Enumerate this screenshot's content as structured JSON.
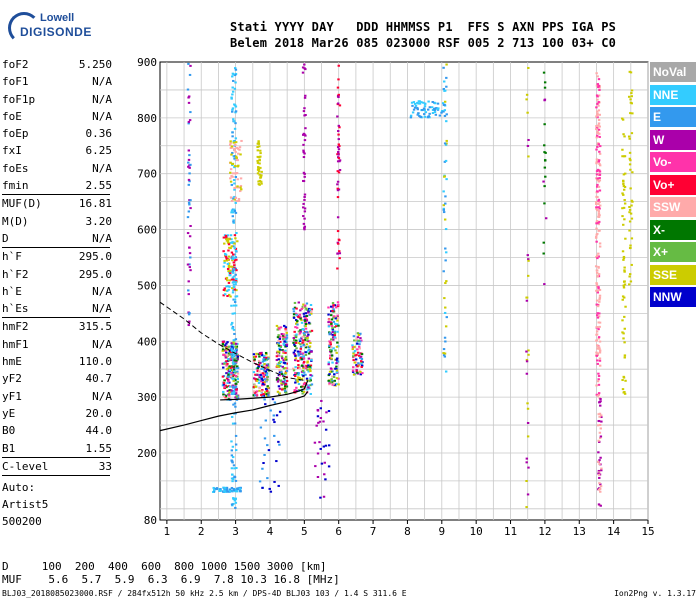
{
  "logo": {
    "line1": "Lowell",
    "line2": "DIGISONDE"
  },
  "header": {
    "line1": "Stati YYYY DAY   DDD HHMMSS P1  FFS S AXN PPS IGA PS",
    "line2": "Belem 2018 Mar26 085 023000 RSF 005 2 713 100 03+ C0"
  },
  "params_group1": [
    {
      "name": "foF2",
      "value": "5.250"
    },
    {
      "name": "foF1",
      "value": "N/A"
    },
    {
      "name": "foF1p",
      "value": "N/A"
    },
    {
      "name": "foE",
      "value": "N/A"
    },
    {
      "name": "foEp",
      "value": "0.36"
    },
    {
      "name": "fxI",
      "value": "6.25"
    },
    {
      "name": "foEs",
      "value": "N/A"
    },
    {
      "name": "fmin",
      "value": "2.55"
    }
  ],
  "params_group2": [
    {
      "name": "MUF(D)",
      "value": "16.81"
    },
    {
      "name": "M(D)",
      "value": "3.20"
    },
    {
      "name": "D",
      "value": "N/A"
    }
  ],
  "params_group3": [
    {
      "name": "h`F",
      "value": "295.0"
    },
    {
      "name": "h`F2",
      "value": "295.0"
    },
    {
      "name": "h`E",
      "value": "N/A"
    },
    {
      "name": "h`Es",
      "value": "N/A"
    }
  ],
  "params_group4": [
    {
      "name": "hmF2",
      "value": "315.5"
    },
    {
      "name": "hmF1",
      "value": "N/A"
    },
    {
      "name": "hmE",
      "value": "110.0"
    },
    {
      "name": "yF2",
      "value": "40.7"
    },
    {
      "name": "yF1",
      "value": "N/A"
    },
    {
      "name": "yE",
      "value": "20.0"
    },
    {
      "name": "B0",
      "value": "44.0"
    },
    {
      "name": "B1",
      "value": "1.55"
    }
  ],
  "clevel": {
    "name": "C-level",
    "value": "33"
  },
  "auto": {
    "line1": "Auto:",
    "line2": "Artist5",
    "line3": "500200"
  },
  "legend": [
    {
      "label": "NoVal",
      "color": "#a8a8a8"
    },
    {
      "label": "NNE",
      "color": "#33ccff"
    },
    {
      "label": "E",
      "color": "#3399ee"
    },
    {
      "label": "W",
      "color": "#aa00aa"
    },
    {
      "label": "Vo-",
      "color": "#ff33aa"
    },
    {
      "label": "Vo+",
      "color": "#ff0033"
    },
    {
      "label": "SSW",
      "color": "#ffaaaa"
    },
    {
      "label": "X-",
      "color": "#007700"
    },
    {
      "label": "X+",
      "color": "#66bb44"
    },
    {
      "label": "SSE",
      "color": "#cccc00"
    },
    {
      "label": "NNW",
      "color": "#0000cc"
    }
  ],
  "chart_data": {
    "type": "scatter",
    "xlim": [
      0.8,
      15
    ],
    "ylim": [
      80,
      900
    ],
    "x_ticks": [
      1,
      2,
      3,
      4,
      5,
      6,
      7,
      8,
      9,
      10,
      11,
      12,
      13,
      14,
      15
    ],
    "y_ticks": [
      80,
      200,
      300,
      400,
      500,
      600,
      700,
      800,
      900
    ],
    "grid": true,
    "traces": [
      {
        "x": [
          2.55,
          3.0,
          3.5,
          4.0,
          4.5,
          4.8,
          5.0,
          5.1
        ],
        "y": [
          295,
          296,
          298,
          300,
          305,
          310,
          315,
          330
        ]
      },
      {
        "x": [
          0.8,
          1.5,
          2.0,
          2.5,
          3.0,
          3.5,
          4.0,
          4.5,
          5.0,
          5.1
        ],
        "y": [
          240,
          250,
          258,
          266,
          272,
          277,
          285,
          292,
          302,
          310
        ]
      }
    ],
    "profile_dashed": {
      "x": [
        0.8,
        1.5,
        2.0,
        2.5,
        3.0,
        3.5,
        4.0,
        4.5,
        5.0
      ],
      "y": [
        470,
        440,
        415,
        395,
        378,
        362,
        348,
        335,
        330
      ]
    }
  },
  "bottom": {
    "d_line": "D     100  200  400  600  800 1000 1500 3000 [km]",
    "muf_line": "MUF    5.6  5.7  5.9  6.3  6.9  7.8 10.3 16.8 [MHz]"
  },
  "footer": {
    "left": "BLJ03_2018085023000.RSF / 284fx512h 50 kHz 2.5 km / DPS-4D BLJ03 103 / 1.4 S 311.6 E",
    "right": "Ion2Png v. 1.3.17"
  }
}
